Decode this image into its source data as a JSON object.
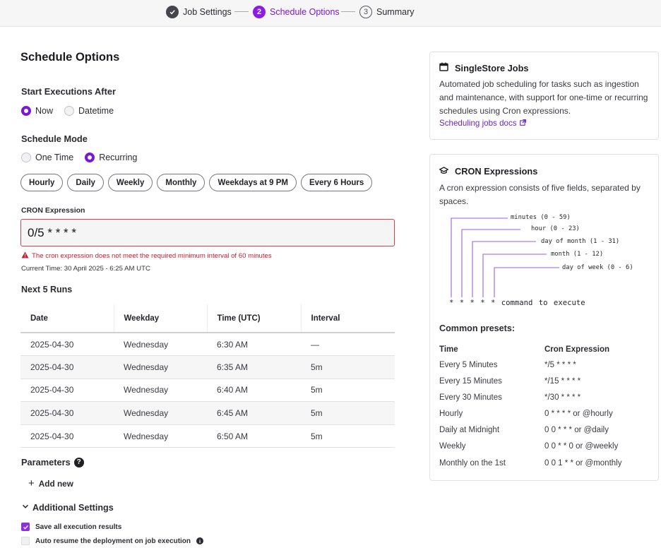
{
  "stepper": {
    "steps": [
      {
        "label": "Job Settings",
        "marker": "✓",
        "state": "done"
      },
      {
        "label": "Schedule Options",
        "marker": "2",
        "state": "active"
      },
      {
        "label": "Summary",
        "marker": "3",
        "state": "todo"
      }
    ]
  },
  "main": {
    "title": "Schedule Options",
    "start_after": {
      "label": "Start Executions After",
      "options": [
        "Now",
        "Datetime"
      ],
      "selected": "Now"
    },
    "mode": {
      "label": "Schedule Mode",
      "options": [
        "One Time",
        "Recurring"
      ],
      "selected": "Recurring"
    },
    "presets": [
      "Hourly",
      "Daily",
      "Weekly",
      "Monthly",
      "Weekdays at 9 PM",
      "Every 6 Hours"
    ],
    "cron": {
      "label": "CRON Expression",
      "value": "0/5 * * * *",
      "error": "The cron expression does not meet the required minimum interval of 60 minutes",
      "current_time": "Current Time: 30 April 2025 - 6:25 AM UTC"
    },
    "next_runs": {
      "title": "Next 5 Runs",
      "columns": [
        "Date",
        "Weekday",
        "Time (UTC)",
        "Interval"
      ],
      "rows": [
        [
          "2025-04-30",
          "Wednesday",
          "6:30 AM",
          "—"
        ],
        [
          "2025-04-30",
          "Wednesday",
          "6:35 AM",
          "5m"
        ],
        [
          "2025-04-30",
          "Wednesday",
          "6:40 AM",
          "5m"
        ],
        [
          "2025-04-30",
          "Wednesday",
          "6:45 AM",
          "5m"
        ],
        [
          "2025-04-30",
          "Wednesday",
          "6:50 AM",
          "5m"
        ]
      ]
    },
    "parameters": {
      "label": "Parameters",
      "add_new": "Add new"
    },
    "additional": {
      "label": "Additional Settings",
      "checks": [
        {
          "label": "Save all execution results",
          "checked": true
        },
        {
          "label": "Auto resume the deployment on job execution",
          "checked": false
        }
      ]
    }
  },
  "sidebar": {
    "jobs_card": {
      "title": "SingleStore Jobs",
      "text": "Automated job scheduling for tasks such as ingestion and maintenance, with support for one-time or recurring schedules using Cron expressions.",
      "link": "Scheduling jobs docs"
    },
    "cron_card": {
      "title": "CRON Expressions",
      "text": "A cron expression consists of five fields, separated by spaces.",
      "fields": [
        "minutes (0 - 59)",
        "hour (0 - 23)",
        "day of month (1 - 31)",
        "month (1 - 12)",
        "day of week (0 - 6)"
      ],
      "command": "* * * * * command to execute",
      "presets_title": "Common presets:",
      "preset_columns": [
        "Time",
        "Cron Expression"
      ],
      "preset_rows": [
        [
          "Every 5 Minutes",
          "*/5 * * * *"
        ],
        [
          "Every 15 Minutes",
          "*/15 * * * *"
        ],
        [
          "Every 30 Minutes",
          "*/30 * * * *"
        ],
        [
          "Hourly",
          "0 * * * * or @hourly"
        ],
        [
          "Daily at Midnight",
          "0 0 * * * or @daily"
        ],
        [
          "Weekly",
          "0 0 * * 0 or @weekly"
        ],
        [
          "Monthly on the 1st",
          "0 0 1 * * or @monthly"
        ]
      ]
    }
  },
  "colors": {
    "accent": "#7c17d6",
    "error": "#c41f34"
  },
  "icons": {
    "step_done": "check-icon",
    "jobs": "calendar-icon",
    "cron": "graduation-cap-icon",
    "error": "warning-icon",
    "link": "external-link-icon",
    "help": "question-icon",
    "info": "info-icon"
  }
}
